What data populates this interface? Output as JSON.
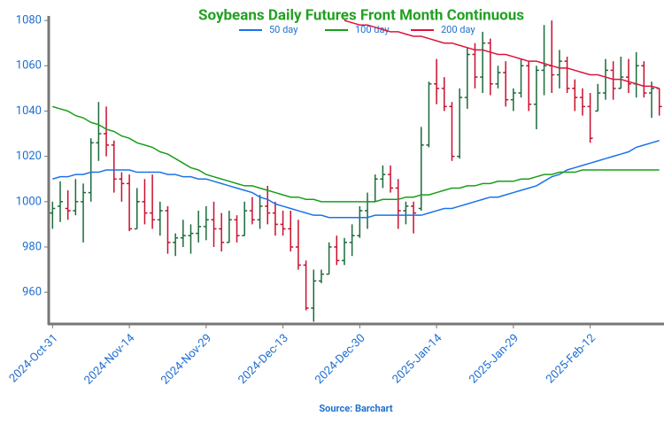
{
  "chart_data": {
    "type": "ohlc",
    "title": "Soybeans Daily Futures Front Month Continuous",
    "source": "Source: Barchart",
    "categories": [
      "2024-Oct-31",
      null,
      null,
      null,
      null,
      null,
      null,
      null,
      null,
      null,
      "2024-Nov-14",
      null,
      null,
      null,
      null,
      null,
      null,
      null,
      null,
      null,
      "2024-Nov-29",
      null,
      null,
      null,
      null,
      null,
      null,
      null,
      null,
      null,
      "2024-Dec-13",
      null,
      null,
      null,
      null,
      null,
      null,
      null,
      null,
      null,
      "2024-Dec-30",
      null,
      null,
      null,
      null,
      null,
      null,
      null,
      null,
      null,
      "2025-Jan-14",
      null,
      null,
      null,
      null,
      null,
      null,
      null,
      null,
      null,
      "2025-Jan-29",
      null,
      null,
      null,
      null,
      null,
      null,
      null,
      null,
      null,
      "2025-Feb-12",
      null,
      null,
      null,
      null,
      null,
      null,
      null,
      null,
      null
    ],
    "open": [
      995,
      998,
      997,
      996,
      1000,
      1004,
      1026,
      1030,
      1025,
      1010,
      1008,
      988,
      1000,
      995,
      992,
      996,
      982,
      984,
      985,
      986,
      989,
      992,
      988,
      982,
      992,
      985,
      996,
      992,
      998,
      995,
      990,
      988,
      980,
      972,
      953,
      965,
      968,
      980,
      974,
      982,
      985,
      996,
      1000,
      1010,
      1012,
      1006,
      996,
      998,
      997,
      1025,
      1052,
      1050,
      1042,
      1020,
      1046,
      1065,
      1055,
      1070,
      1052,
      1057,
      1045,
      1048,
      1060,
      1043,
      1058,
      1060,
      1056,
      1062,
      1050,
      1046,
      1042,
      1040,
      1048,
      1058,
      1050,
      1055,
      1052,
      1060,
      1048,
      1050
    ],
    "high": [
      1000,
      1009,
      1005,
      1010,
      1008,
      1028,
      1044,
      1042,
      1027,
      1013,
      1012,
      1006,
      1010,
      1012,
      1000,
      998,
      986,
      992,
      990,
      996,
      998,
      1000,
      995,
      996,
      994,
      1000,
      1002,
      1003,
      1007,
      1000,
      996,
      996,
      992,
      974,
      970,
      970,
      982,
      985,
      984,
      990,
      998,
      1004,
      1012,
      1016,
      1016,
      1010,
      1000,
      1000,
      1033,
      1053,
      1063,
      1055,
      1044,
      1050,
      1068,
      1070,
      1075,
      1072,
      1060,
      1062,
      1050,
      1063,
      1062,
      1060,
      1078,
      1080,
      1067,
      1064,
      1054,
      1050,
      1048,
      1052,
      1063,
      1062,
      1064,
      1063,
      1066,
      1062,
      1053,
      1050
    ],
    "low": [
      988,
      991,
      992,
      994,
      982,
      1000,
      1018,
      1020,
      1004,
      1000,
      987,
      988,
      990,
      988,
      985,
      977,
      976,
      980,
      977,
      982,
      983,
      980,
      978,
      982,
      982,
      985,
      990,
      988,
      990,
      985,
      985,
      978,
      970,
      952,
      947,
      964,
      968,
      972,
      972,
      976,
      984,
      988,
      1000,
      1006,
      1004,
      988,
      990,
      986,
      996,
      1024,
      1043,
      1040,
      1018,
      1019,
      1041,
      1050,
      1048,
      1047,
      1050,
      1042,
      1040,
      1046,
      1040,
      1032,
      1047,
      1048,
      1050,
      1048,
      1040,
      1038,
      1026,
      1040,
      1045,
      1045,
      1050,
      1048,
      1046,
      1046,
      1037,
      1038
    ],
    "close": [
      997,
      1000,
      996,
      1000,
      1004,
      1026,
      1030,
      1025,
      1010,
      1008,
      988,
      1000,
      995,
      992,
      996,
      982,
      984,
      985,
      986,
      989,
      992,
      988,
      982,
      992,
      985,
      996,
      992,
      998,
      995,
      990,
      988,
      980,
      972,
      953,
      965,
      968,
      980,
      974,
      982,
      985,
      996,
      1000,
      1010,
      1012,
      1006,
      996,
      998,
      995,
      1025,
      1052,
      1050,
      1042,
      1020,
      1046,
      1065,
      1055,
      1070,
      1052,
      1057,
      1045,
      1048,
      1060,
      1043,
      1058,
      1060,
      1056,
      1062,
      1050,
      1046,
      1042,
      1028,
      1048,
      1058,
      1050,
      1055,
      1052,
      1060,
      1048,
      1050,
      1042
    ],
    "up_color": "#1b6b3a",
    "down_color": "#c8102e",
    "series": [
      {
        "name": "50 day",
        "color": "#1a73e8",
        "values": [
          1010,
          1011,
          1011,
          1012,
          1012,
          1013,
          1013,
          1014,
          1014,
          1014,
          1014,
          1013,
          1013,
          1013,
          1013,
          1012,
          1012,
          1011,
          1011,
          1010,
          1010,
          1009,
          1008,
          1007,
          1006,
          1005,
          1004,
          1002,
          1001,
          999,
          998,
          997,
          996,
          995,
          994,
          994,
          993,
          993,
          993,
          993,
          993,
          993,
          994,
          994,
          994,
          994,
          994,
          994,
          994,
          995,
          996,
          997,
          997,
          998,
          999,
          1000,
          1001,
          1002,
          1002,
          1003,
          1004,
          1005,
          1006,
          1007,
          1009,
          1011,
          1012,
          1014,
          1015,
          1016,
          1017,
          1018,
          1019,
          1020,
          1021,
          1022,
          1024,
          1025,
          1026,
          1027
        ]
      },
      {
        "name": "100 day",
        "color": "#1a9e1a",
        "values": [
          1042,
          1041,
          1040,
          1038,
          1037,
          1035,
          1034,
          1032,
          1031,
          1029,
          1028,
          1026,
          1025,
          1024,
          1022,
          1021,
          1019,
          1017,
          1015,
          1014,
          1012,
          1011,
          1010,
          1009,
          1008,
          1007,
          1007,
          1006,
          1005,
          1004,
          1003,
          1002,
          1002,
          1001,
          1001,
          1000,
          1000,
          1000,
          1000,
          1000,
          1000,
          1000,
          1000,
          1001,
          1001,
          1001,
          1002,
          1002,
          1003,
          1003,
          1004,
          1005,
          1006,
          1006,
          1007,
          1007,
          1008,
          1008,
          1009,
          1009,
          1009,
          1010,
          1010,
          1011,
          1012,
          1012,
          1013,
          1013,
          1013,
          1014,
          1014,
          1014,
          1014,
          1014,
          1014,
          1014,
          1014,
          1014,
          1014,
          1014
        ]
      },
      {
        "name": "200 day",
        "color": "#dc143c",
        "values": [
          null,
          null,
          null,
          null,
          null,
          null,
          null,
          null,
          null,
          null,
          null,
          null,
          null,
          null,
          null,
          null,
          null,
          null,
          null,
          null,
          null,
          null,
          null,
          null,
          null,
          null,
          null,
          null,
          null,
          null,
          null,
          null,
          null,
          null,
          null,
          null,
          null,
          null,
          1080,
          1079,
          1078,
          1078,
          1077,
          1076,
          1075,
          1075,
          1074,
          1073,
          1073,
          1072,
          1071,
          1070,
          1070,
          1069,
          1068,
          1067,
          1067,
          1066,
          1065,
          1065,
          1064,
          1063,
          1062,
          1062,
          1061,
          1060,
          1059,
          1059,
          1058,
          1057,
          1056,
          1056,
          1055,
          1054,
          1054,
          1053,
          1052,
          1051,
          1051,
          1050
        ]
      }
    ],
    "ylim": [
      946,
      1082
    ],
    "yticks": [
      960,
      980,
      1000,
      1020,
      1040,
      1060,
      1080
    ]
  }
}
